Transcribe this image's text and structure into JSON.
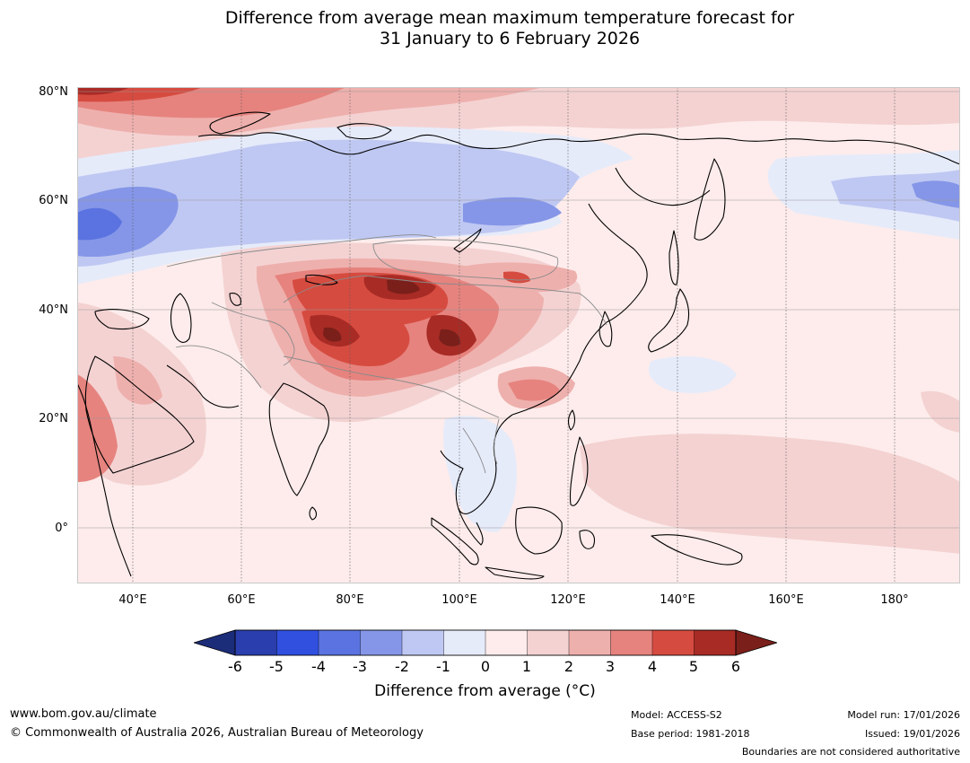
{
  "title": {
    "line1": "Difference from average mean maximum temperature forecast for",
    "line2": "31 January to 6 February 2026"
  },
  "map": {
    "latitude_labels": [
      "80°N",
      "60°N",
      "40°N",
      "20°N",
      "0°"
    ],
    "longitude_labels": [
      "40°E",
      "60°E",
      "80°E",
      "100°E",
      "120°E",
      "140°E",
      "160°E",
      "180°"
    ]
  },
  "legend": {
    "title": "Difference from average (°C)",
    "ticks": [
      "-6",
      "-5",
      "-4",
      "-3",
      "-2",
      "-1",
      "0",
      "1",
      "2",
      "3",
      "4",
      "5",
      "6"
    ],
    "colors": {
      "below_min": "#1b2c78",
      "bins": [
        "#2a3ead",
        "#3150e0",
        "#5a73e0",
        "#8596e8",
        "#bfc8f2",
        "#e6ebfa",
        "#fdeceb",
        "#f4d2d2",
        "#eeb0ad",
        "#e6837e",
        "#d64b40",
        "#a82b25"
      ],
      "above_max": "#7a1f1a"
    }
  },
  "footer": {
    "website": "www.bom.gov.au/climate",
    "copyright": "© Commonwealth of Australia 2026, Australian Bureau of Meteorology",
    "model": "Model: ACCESS-S2",
    "base_period": "Base period: 1981-2018",
    "model_run": "Model run: 17/01/2026",
    "issued": "Issued: 19/01/2026",
    "disclaimer": "Boundaries are not considered authoritative"
  }
}
